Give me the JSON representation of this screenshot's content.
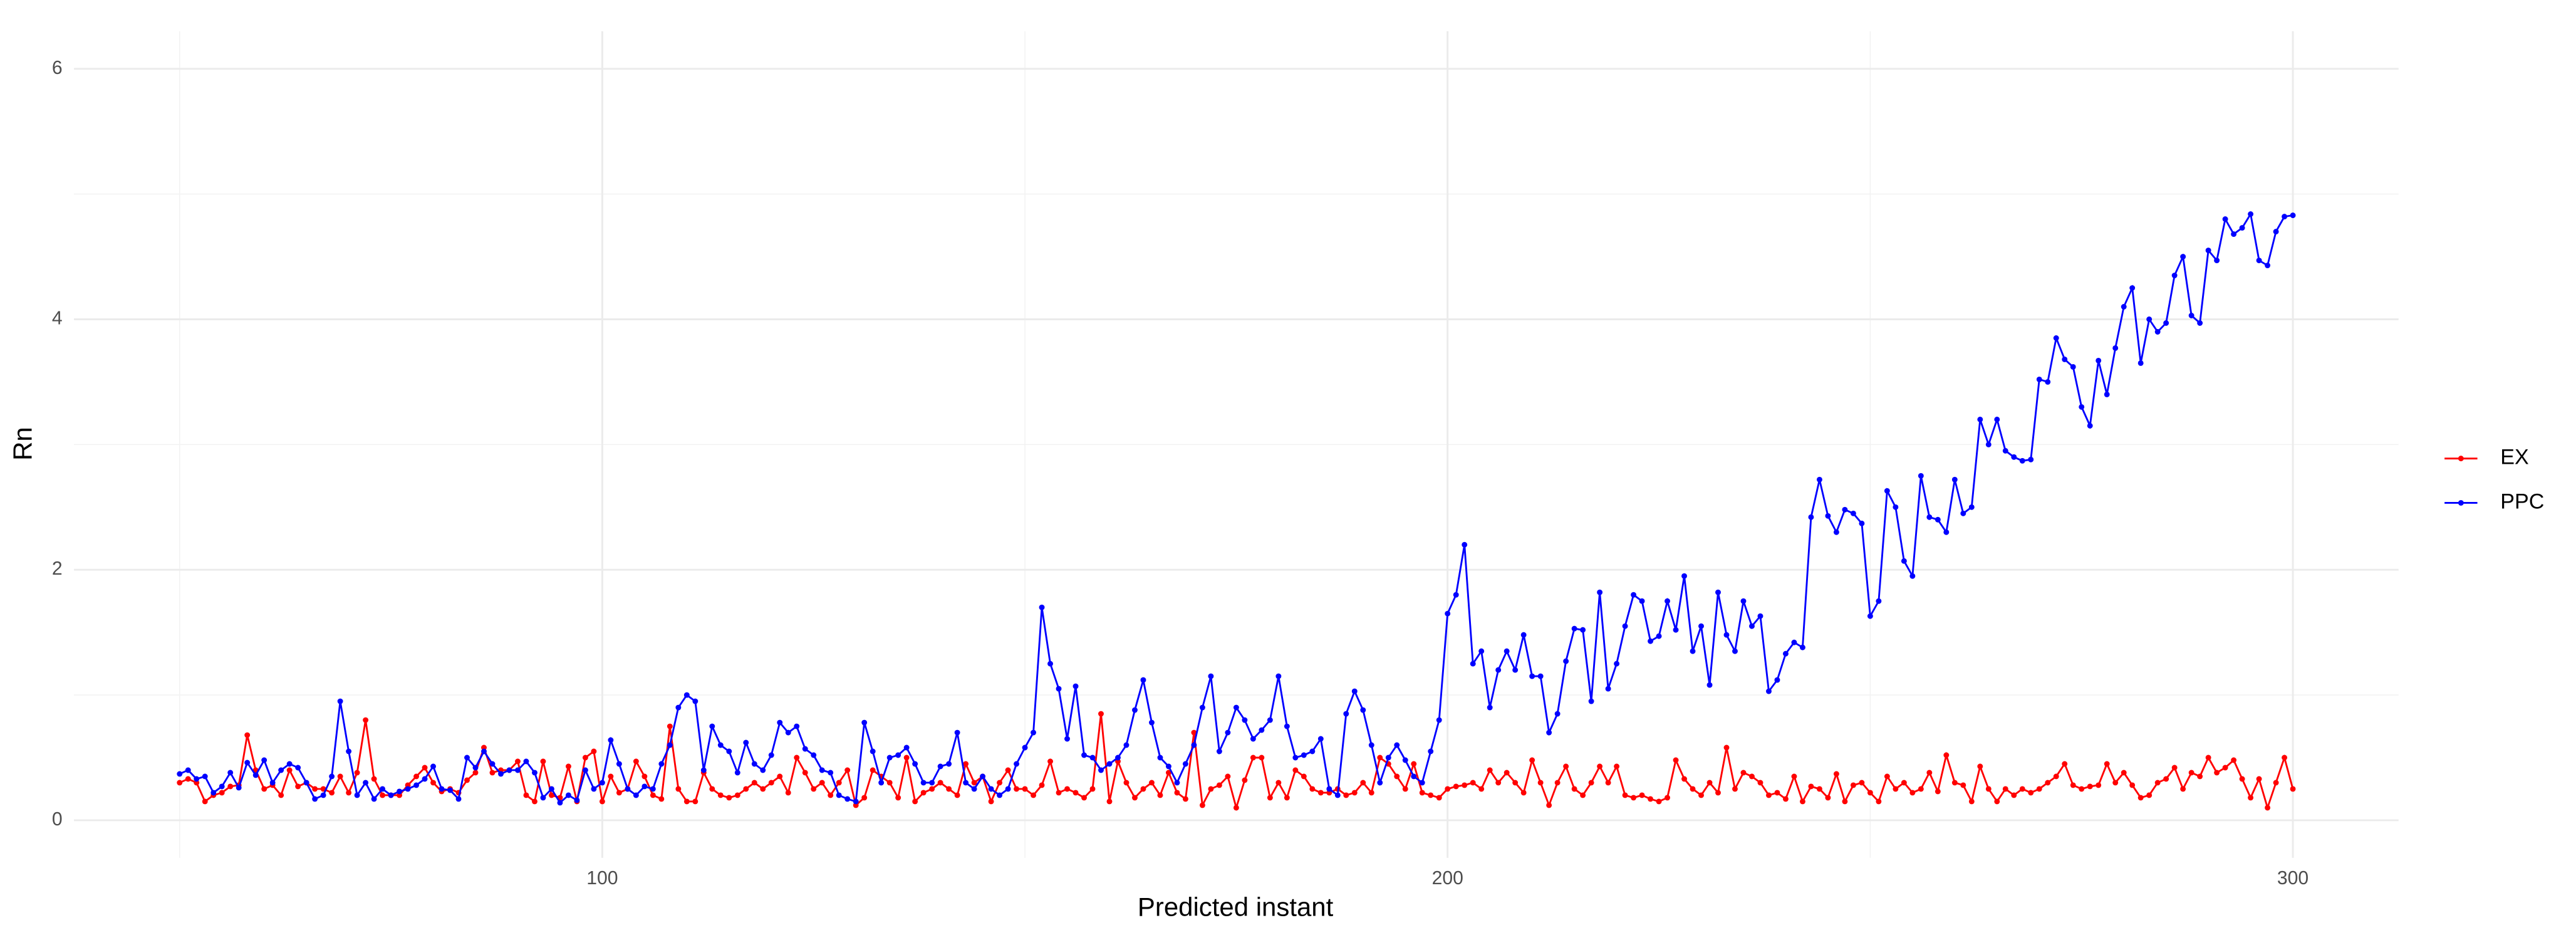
{
  "chart_data": {
    "type": "line",
    "x_label": "Predicted instant",
    "y_label": "Rn",
    "x": [
      50,
      51,
      52,
      53,
      54,
      55,
      56,
      57,
      58,
      59,
      60,
      61,
      62,
      63,
      64,
      65,
      66,
      67,
      68,
      69,
      70,
      71,
      72,
      73,
      74,
      75,
      76,
      77,
      78,
      79,
      80,
      81,
      82,
      83,
      84,
      85,
      86,
      87,
      88,
      89,
      90,
      91,
      92,
      93,
      94,
      95,
      96,
      97,
      98,
      99,
      100,
      101,
      102,
      103,
      104,
      105,
      106,
      107,
      108,
      109,
      110,
      111,
      112,
      113,
      114,
      115,
      116,
      117,
      118,
      119,
      120,
      121,
      122,
      123,
      124,
      125,
      126,
      127,
      128,
      129,
      130,
      131,
      132,
      133,
      134,
      135,
      136,
      137,
      138,
      139,
      140,
      141,
      142,
      143,
      144,
      145,
      146,
      147,
      148,
      149,
      150,
      151,
      152,
      153,
      154,
      155,
      156,
      157,
      158,
      159,
      160,
      161,
      162,
      163,
      164,
      165,
      166,
      167,
      168,
      169,
      170,
      171,
      172,
      173,
      174,
      175,
      176,
      177,
      178,
      179,
      180,
      181,
      182,
      183,
      184,
      185,
      186,
      187,
      188,
      189,
      190,
      191,
      192,
      193,
      194,
      195,
      196,
      197,
      198,
      199,
      200,
      201,
      202,
      203,
      204,
      205,
      206,
      207,
      208,
      209,
      210,
      211,
      212,
      213,
      214,
      215,
      216,
      217,
      218,
      219,
      220,
      221,
      222,
      223,
      224,
      225,
      226,
      227,
      228,
      229,
      230,
      231,
      232,
      233,
      234,
      235,
      236,
      237,
      238,
      239,
      240,
      241,
      242,
      243,
      244,
      245,
      246,
      247,
      248,
      249,
      250,
      251,
      252,
      253,
      254,
      255,
      256,
      257,
      258,
      259,
      260,
      261,
      262,
      263,
      264,
      265,
      266,
      267,
      268,
      269,
      270,
      271,
      272,
      273,
      274,
      275,
      276,
      277,
      278,
      279,
      280,
      281,
      282,
      283,
      284,
      285,
      286,
      287,
      288,
      289,
      290,
      291,
      292,
      293,
      294,
      295,
      296,
      297,
      298,
      299,
      300
    ],
    "series": [
      {
        "name": "EX",
        "color": "#ff0000",
        "values": [
          0.3,
          0.33,
          0.3,
          0.15,
          0.2,
          0.22,
          0.27,
          0.28,
          0.68,
          0.4,
          0.25,
          0.28,
          0.2,
          0.4,
          0.27,
          0.3,
          0.25,
          0.25,
          0.22,
          0.35,
          0.22,
          0.38,
          0.8,
          0.33,
          0.2,
          0.2,
          0.2,
          0.28,
          0.35,
          0.42,
          0.3,
          0.23,
          0.25,
          0.22,
          0.32,
          0.38,
          0.58,
          0.38,
          0.4,
          0.4,
          0.47,
          0.2,
          0.15,
          0.47,
          0.2,
          0.18,
          0.43,
          0.15,
          0.5,
          0.55,
          0.15,
          0.35,
          0.22,
          0.25,
          0.47,
          0.35,
          0.2,
          0.17,
          0.75,
          0.25,
          0.15,
          0.15,
          0.38,
          0.25,
          0.2,
          0.18,
          0.2,
          0.25,
          0.3,
          0.25,
          0.3,
          0.35,
          0.22,
          0.5,
          0.38,
          0.25,
          0.3,
          0.2,
          0.3,
          0.4,
          0.12,
          0.18,
          0.4,
          0.35,
          0.3,
          0.18,
          0.5,
          0.15,
          0.22,
          0.25,
          0.3,
          0.25,
          0.2,
          0.45,
          0.3,
          0.35,
          0.15,
          0.3,
          0.4,
          0.25,
          0.25,
          0.2,
          0.28,
          0.47,
          0.22,
          0.25,
          0.22,
          0.18,
          0.25,
          0.85,
          0.15,
          0.47,
          0.3,
          0.18,
          0.25,
          0.3,
          0.2,
          0.38,
          0.22,
          0.17,
          0.7,
          0.12,
          0.25,
          0.28,
          0.35,
          0.1,
          0.32,
          0.5,
          0.5,
          0.18,
          0.3,
          0.18,
          0.4,
          0.35,
          0.25,
          0.22,
          0.22,
          0.25,
          0.2,
          0.22,
          0.3,
          0.22,
          0.5,
          0.45,
          0.35,
          0.25,
          0.45,
          0.22,
          0.2,
          0.18,
          0.25,
          0.27,
          0.28,
          0.3,
          0.25,
          0.4,
          0.3,
          0.38,
          0.3,
          0.22,
          0.48,
          0.3,
          0.12,
          0.3,
          0.43,
          0.25,
          0.2,
          0.3,
          0.43,
          0.3,
          0.43,
          0.2,
          0.18,
          0.2,
          0.17,
          0.15,
          0.18,
          0.48,
          0.33,
          0.25,
          0.2,
          0.3,
          0.22,
          0.58,
          0.25,
          0.38,
          0.35,
          0.3,
          0.2,
          0.22,
          0.17,
          0.35,
          0.15,
          0.27,
          0.25,
          0.18,
          0.37,
          0.15,
          0.28,
          0.3,
          0.22,
          0.15,
          0.35,
          0.25,
          0.3,
          0.22,
          0.25,
          0.38,
          0.23,
          0.52,
          0.3,
          0.28,
          0.15,
          0.43,
          0.25,
          0.15,
          0.25,
          0.2,
          0.25,
          0.22,
          0.25,
          0.3,
          0.35,
          0.45,
          0.28,
          0.25,
          0.27,
          0.28,
          0.45,
          0.3,
          0.38,
          0.28,
          0.18,
          0.2,
          0.3,
          0.33,
          0.42,
          0.25,
          0.38,
          0.35,
          0.5,
          0.38,
          0.42,
          0.48,
          0.33,
          0.18,
          0.33,
          0.1,
          0.3,
          0.5,
          0.25
        ]
      },
      {
        "name": "PPC",
        "color": "#0000ff",
        "values": [
          0.37,
          0.4,
          0.33,
          0.35,
          0.22,
          0.27,
          0.38,
          0.26,
          0.46,
          0.36,
          0.48,
          0.3,
          0.4,
          0.45,
          0.42,
          0.3,
          0.17,
          0.2,
          0.35,
          0.95,
          0.55,
          0.2,
          0.3,
          0.17,
          0.25,
          0.2,
          0.23,
          0.25,
          0.28,
          0.33,
          0.43,
          0.25,
          0.24,
          0.17,
          0.5,
          0.42,
          0.55,
          0.45,
          0.37,
          0.4,
          0.4,
          0.47,
          0.38,
          0.18,
          0.25,
          0.14,
          0.2,
          0.16,
          0.4,
          0.25,
          0.3,
          0.64,
          0.45,
          0.25,
          0.2,
          0.27,
          0.25,
          0.45,
          0.6,
          0.9,
          1.0,
          0.95,
          0.4,
          0.75,
          0.6,
          0.55,
          0.38,
          0.62,
          0.45,
          0.4,
          0.52,
          0.78,
          0.7,
          0.75,
          0.57,
          0.52,
          0.4,
          0.38,
          0.2,
          0.17,
          0.15,
          0.78,
          0.55,
          0.3,
          0.5,
          0.52,
          0.58,
          0.45,
          0.3,
          0.3,
          0.43,
          0.45,
          0.7,
          0.3,
          0.25,
          0.35,
          0.25,
          0.2,
          0.25,
          0.45,
          0.58,
          0.7,
          1.7,
          1.25,
          1.05,
          0.65,
          1.07,
          0.52,
          0.5,
          0.4,
          0.45,
          0.5,
          0.6,
          0.88,
          1.12,
          0.78,
          0.5,
          0.43,
          0.3,
          0.45,
          0.6,
          0.9,
          1.15,
          0.55,
          0.7,
          0.9,
          0.8,
          0.65,
          0.72,
          0.8,
          1.15,
          0.75,
          0.5,
          0.52,
          0.55,
          0.65,
          0.25,
          0.2,
          0.85,
          1.03,
          0.88,
          0.6,
          0.3,
          0.5,
          0.6,
          0.48,
          0.35,
          0.3,
          0.55,
          0.8,
          1.65,
          1.8,
          2.2,
          1.25,
          1.35,
          0.9,
          1.2,
          1.35,
          1.2,
          1.48,
          1.15,
          1.15,
          0.7,
          0.85,
          1.27,
          1.53,
          1.52,
          0.95,
          1.82,
          1.05,
          1.25,
          1.55,
          1.8,
          1.75,
          1.43,
          1.47,
          1.75,
          1.52,
          1.95,
          1.35,
          1.55,
          1.08,
          1.82,
          1.48,
          1.35,
          1.75,
          1.55,
          1.63,
          1.03,
          1.12,
          1.33,
          1.42,
          1.38,
          2.42,
          2.72,
          2.43,
          2.3,
          2.48,
          2.45,
          2.37,
          1.63,
          1.75,
          2.63,
          2.5,
          2.07,
          1.95,
          2.75,
          2.42,
          2.4,
          2.3,
          2.72,
          2.45,
          2.5,
          3.2,
          3.0,
          3.2,
          2.95,
          2.9,
          2.87,
          2.88,
          3.52,
          3.5,
          3.85,
          3.68,
          3.62,
          3.3,
          3.15,
          3.67,
          3.4,
          3.77,
          4.1,
          4.25,
          3.65,
          4.0,
          3.9,
          3.97,
          4.35,
          4.5,
          4.03,
          3.97,
          4.55,
          4.47,
          4.8,
          4.68,
          4.73,
          4.84,
          4.47,
          4.43,
          4.7,
          4.82,
          4.83
        ]
      }
    ],
    "xlim": [
      37.5,
      312.5
    ],
    "xticks": [
      100,
      200,
      300
    ],
    "xminor": [
      50,
      150,
      250
    ],
    "ylim": [
      -0.3,
      6.3
    ],
    "yticks": [
      0,
      2,
      4,
      6
    ],
    "yminor": [
      1,
      3,
      5
    ],
    "grid": true,
    "legend": "right",
    "markers": true
  }
}
